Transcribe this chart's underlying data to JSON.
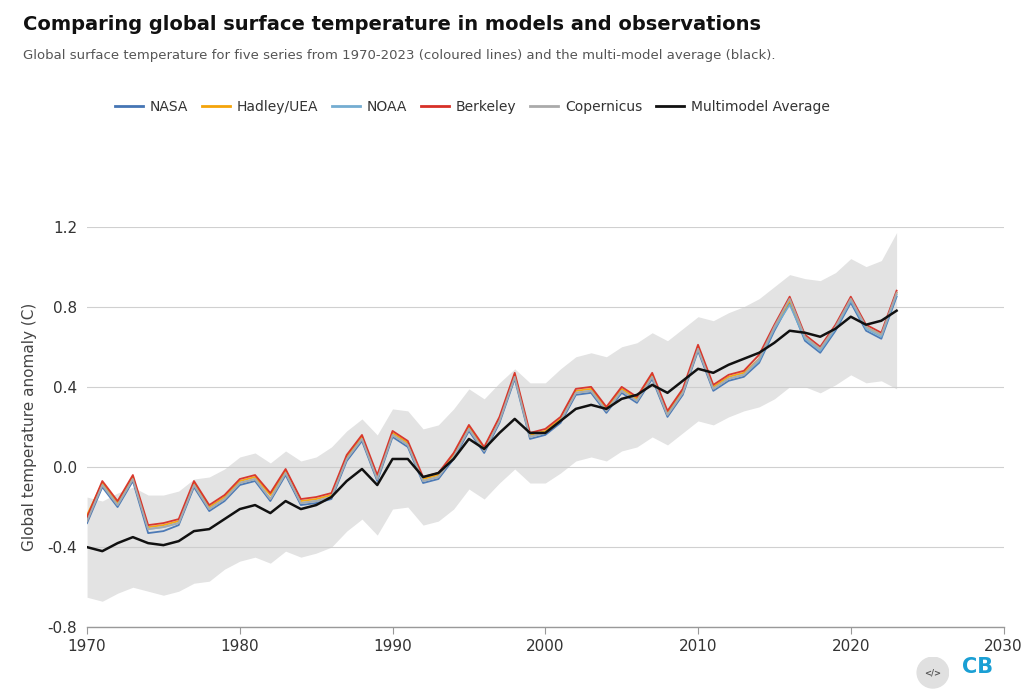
{
  "title": "Comparing global surface temperature in models and observations",
  "subtitle": "Global surface temperature for five series from 1970-2023 (coloured lines) and the multi-model average (black).",
  "ylabel": "Global temperature anomaly (C)",
  "xlim": [
    1970,
    2030
  ],
  "ylim": [
    -0.8,
    1.2
  ],
  "yticks": [
    -0.8,
    -0.4,
    0.0,
    0.4,
    0.8,
    1.2
  ],
  "xticks": [
    1970,
    1980,
    1990,
    2000,
    2010,
    2020,
    2030
  ],
  "bg_color": "#ffffff",
  "grid_color": "#d0d0d0",
  "series_colors": {
    "NASA": "#4575b4",
    "Hadley": "#f4a40a",
    "NOAA": "#74add1",
    "Berkeley": "#d73027",
    "Copernicus": "#aaaaaa",
    "Multimodel": "#111111"
  },
  "shade_color": "#cccccc",
  "years": [
    1970,
    1971,
    1972,
    1973,
    1974,
    1975,
    1976,
    1977,
    1978,
    1979,
    1980,
    1981,
    1982,
    1983,
    1984,
    1985,
    1986,
    1987,
    1988,
    1989,
    1990,
    1991,
    1992,
    1993,
    1994,
    1995,
    1996,
    1997,
    1998,
    1999,
    2000,
    2001,
    2002,
    2003,
    2004,
    2005,
    2006,
    2007,
    2008,
    2009,
    2010,
    2011,
    2012,
    2013,
    2014,
    2015,
    2016,
    2017,
    2018,
    2019,
    2020,
    2021,
    2022,
    2023
  ],
  "NASA": [
    -0.28,
    -0.1,
    -0.2,
    -0.07,
    -0.33,
    -0.32,
    -0.29,
    -0.1,
    -0.22,
    -0.17,
    -0.09,
    -0.07,
    -0.17,
    -0.04,
    -0.19,
    -0.18,
    -0.16,
    0.03,
    0.13,
    -0.07,
    0.15,
    0.1,
    -0.08,
    -0.06,
    0.04,
    0.18,
    0.07,
    0.22,
    0.44,
    0.14,
    0.16,
    0.22,
    0.36,
    0.37,
    0.27,
    0.37,
    0.32,
    0.44,
    0.25,
    0.36,
    0.58,
    0.38,
    0.43,
    0.45,
    0.52,
    0.68,
    0.82,
    0.63,
    0.57,
    0.68,
    0.82,
    0.68,
    0.64,
    0.85
  ],
  "Hadley": [
    -0.24,
    -0.08,
    -0.18,
    -0.05,
    -0.3,
    -0.29,
    -0.27,
    -0.08,
    -0.2,
    -0.15,
    -0.07,
    -0.05,
    -0.14,
    -0.02,
    -0.17,
    -0.16,
    -0.14,
    0.05,
    0.15,
    -0.05,
    0.17,
    0.12,
    -0.06,
    -0.04,
    0.06,
    0.2,
    0.09,
    0.24,
    0.46,
    0.16,
    0.18,
    0.24,
    0.38,
    0.39,
    0.29,
    0.39,
    0.34,
    0.46,
    0.27,
    0.38,
    0.6,
    0.4,
    0.45,
    0.47,
    0.54,
    0.7,
    0.83,
    0.65,
    0.59,
    0.7,
    0.84,
    0.7,
    0.66,
    0.87
  ],
  "NOAA": [
    -0.26,
    -0.09,
    -0.19,
    -0.06,
    -0.31,
    -0.3,
    -0.28,
    -0.09,
    -0.21,
    -0.16,
    -0.08,
    -0.06,
    -0.16,
    -0.03,
    -0.18,
    -0.17,
    -0.15,
    0.04,
    0.14,
    -0.06,
    0.16,
    0.11,
    -0.07,
    -0.05,
    0.05,
    0.19,
    0.08,
    0.23,
    0.45,
    0.15,
    0.17,
    0.23,
    0.37,
    0.38,
    0.28,
    0.38,
    0.33,
    0.45,
    0.26,
    0.37,
    0.59,
    0.39,
    0.44,
    0.46,
    0.53,
    0.69,
    0.81,
    0.64,
    0.58,
    0.69,
    0.83,
    0.69,
    0.65,
    0.86
  ],
  "Berkeley": [
    -0.25,
    -0.07,
    -0.17,
    -0.04,
    -0.29,
    -0.28,
    -0.26,
    -0.07,
    -0.19,
    -0.14,
    -0.06,
    -0.04,
    -0.13,
    -0.01,
    -0.16,
    -0.15,
    -0.13,
    0.06,
    0.16,
    -0.04,
    0.18,
    0.13,
    -0.05,
    -0.03,
    0.07,
    0.21,
    0.1,
    0.25,
    0.47,
    0.17,
    0.19,
    0.25,
    0.39,
    0.4,
    0.3,
    0.4,
    0.35,
    0.47,
    0.28,
    0.39,
    0.61,
    0.41,
    0.46,
    0.48,
    0.56,
    0.71,
    0.85,
    0.66,
    0.6,
    0.71,
    0.85,
    0.71,
    0.67,
    0.88
  ],
  "Copernicus": [
    -0.27,
    -0.09,
    -0.19,
    -0.06,
    -0.31,
    -0.3,
    -0.28,
    -0.09,
    -0.21,
    -0.16,
    -0.08,
    -0.06,
    -0.16,
    -0.03,
    -0.18,
    -0.17,
    -0.15,
    0.04,
    0.14,
    -0.06,
    0.16,
    0.11,
    -0.07,
    -0.05,
    0.05,
    0.19,
    0.08,
    0.23,
    0.45,
    0.15,
    0.17,
    0.23,
    0.37,
    0.38,
    0.28,
    0.38,
    0.33,
    0.45,
    0.26,
    0.37,
    0.59,
    0.39,
    0.44,
    0.46,
    0.54,
    0.7,
    0.84,
    0.65,
    0.59,
    0.7,
    0.84,
    0.7,
    0.66,
    0.87
  ],
  "Multimodel": [
    -0.4,
    -0.42,
    -0.38,
    -0.35,
    -0.38,
    -0.39,
    -0.37,
    -0.32,
    -0.31,
    -0.26,
    -0.21,
    -0.19,
    -0.23,
    -0.17,
    -0.21,
    -0.19,
    -0.15,
    -0.07,
    -0.01,
    -0.09,
    0.04,
    0.04,
    -0.05,
    -0.03,
    0.04,
    0.14,
    0.09,
    0.17,
    0.24,
    0.17,
    0.17,
    0.23,
    0.29,
    0.31,
    0.29,
    0.34,
    0.36,
    0.41,
    0.37,
    0.43,
    0.49,
    0.47,
    0.51,
    0.54,
    0.57,
    0.62,
    0.68,
    0.67,
    0.65,
    0.69,
    0.75,
    0.71,
    0.73,
    0.78
  ],
  "shade_upper": [
    -0.15,
    -0.17,
    -0.13,
    -0.1,
    -0.14,
    -0.14,
    -0.12,
    -0.06,
    -0.05,
    -0.01,
    0.05,
    0.07,
    0.02,
    0.08,
    0.03,
    0.05,
    0.1,
    0.18,
    0.24,
    0.16,
    0.29,
    0.28,
    0.19,
    0.21,
    0.29,
    0.39,
    0.34,
    0.42,
    0.49,
    0.42,
    0.42,
    0.49,
    0.55,
    0.57,
    0.55,
    0.6,
    0.62,
    0.67,
    0.63,
    0.69,
    0.75,
    0.73,
    0.77,
    0.8,
    0.84,
    0.9,
    0.96,
    0.94,
    0.93,
    0.97,
    1.04,
    1.0,
    1.03,
    1.17
  ],
  "shade_lower": [
    -0.65,
    -0.67,
    -0.63,
    -0.6,
    -0.62,
    -0.64,
    -0.62,
    -0.58,
    -0.57,
    -0.51,
    -0.47,
    -0.45,
    -0.48,
    -0.42,
    -0.45,
    -0.43,
    -0.4,
    -0.32,
    -0.26,
    -0.34,
    -0.21,
    -0.2,
    -0.29,
    -0.27,
    -0.21,
    -0.11,
    -0.16,
    -0.08,
    -0.01,
    -0.08,
    -0.08,
    -0.03,
    0.03,
    0.05,
    0.03,
    0.08,
    0.1,
    0.15,
    0.11,
    0.17,
    0.23,
    0.21,
    0.25,
    0.28,
    0.3,
    0.34,
    0.4,
    0.4,
    0.37,
    0.41,
    0.46,
    0.42,
    0.43,
    0.39
  ]
}
